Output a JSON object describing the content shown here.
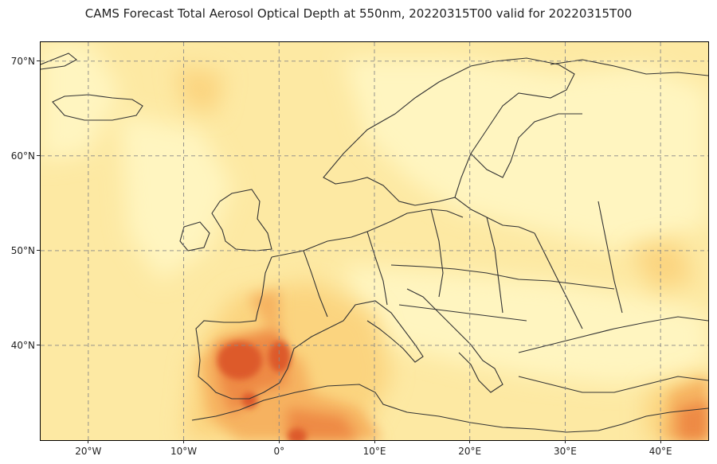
{
  "title": "CAMS Forecast Total Aerosol Optical Depth at 550nm, 20220315T00 valid for 20220315T00",
  "map": {
    "extent": {
      "lon": [
        -25,
        45
      ],
      "lat": [
        30,
        72
      ]
    },
    "projection": "PlateCarree",
    "gridlines": true,
    "colormap": [
      "#fff5c0",
      "#fde9a3",
      "#fbd47f",
      "#f6b261",
      "#ee8a45",
      "#dd5a2b",
      "#c8321c"
    ],
    "coastline_color": "#333333"
  },
  "axes": {
    "lon_ticks": [
      {
        "value": -20,
        "label": "20°W"
      },
      {
        "value": -10,
        "label": "10°W"
      },
      {
        "value": 0,
        "label": "0°"
      },
      {
        "value": 10,
        "label": "10°E"
      },
      {
        "value": 20,
        "label": "20°E"
      },
      {
        "value": 30,
        "label": "30°E"
      },
      {
        "value": 40,
        "label": "40°E"
      }
    ],
    "lat_ticks": [
      {
        "value": 70,
        "label": "70°N"
      },
      {
        "value": 60,
        "label": "60°N"
      },
      {
        "value": 50,
        "label": "50°N"
      },
      {
        "value": 40,
        "label": "40°N"
      }
    ]
  }
}
